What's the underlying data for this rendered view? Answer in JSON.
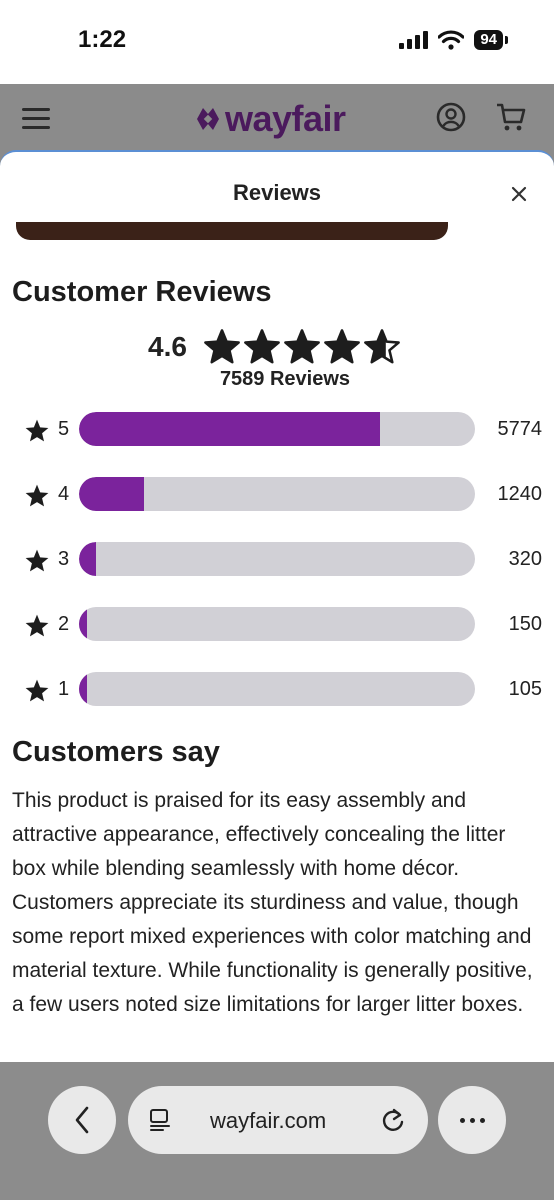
{
  "status": {
    "time": "1:22",
    "battery": "94"
  },
  "header": {
    "logo_text": "wayfair",
    "icons": [
      "menu-icon",
      "account-icon",
      "cart-icon"
    ]
  },
  "sheet": {
    "title": "Reviews"
  },
  "reviews": {
    "heading": "Customer Reviews",
    "rating": "4.6",
    "rating_fraction": 0.92,
    "count_label": "7589 Reviews",
    "histogram": [
      {
        "stars": "5",
        "count": "5774",
        "fraction": 0.761
      },
      {
        "stars": "4",
        "count": "1240",
        "fraction": 0.163
      },
      {
        "stars": "3",
        "count": "320",
        "fraction": 0.042
      },
      {
        "stars": "2",
        "count": "150",
        "fraction": 0.02
      },
      {
        "stars": "1",
        "count": "105",
        "fraction": 0.014
      }
    ]
  },
  "customers_say": {
    "heading": "Customers say",
    "text": "This product is praised for its easy assembly and attractive appearance, effectively concealing the litter box while blending seamlessly with home décor. Customers appreciate its sturdiness and value, though some report mixed experiences with color matching and material texture. While functionality is generally positive, a few users noted size limitations for larger litter boxes."
  },
  "browser": {
    "url": "wayfair.com"
  },
  "colors": {
    "brand_purple": "#7b239c",
    "logo_purple": "#4b1a5d",
    "track_gray": "#d1d0d6"
  }
}
